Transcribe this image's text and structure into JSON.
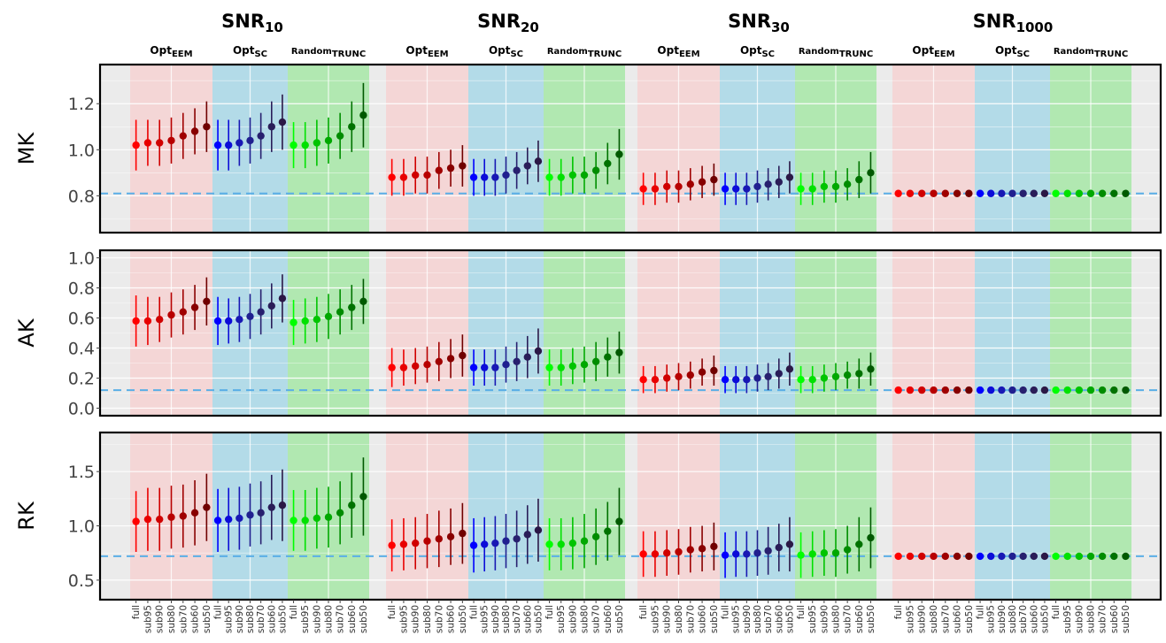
{
  "chart_data": {
    "type": "scatter",
    "description_style": "faceted point-range plot",
    "column_groups": [
      {
        "title_main": "SNR",
        "title_sub": "10"
      },
      {
        "title_main": "SNR",
        "title_sub": "20"
      },
      {
        "title_main": "SNR",
        "title_sub": "30"
      },
      {
        "title_main": "SNR",
        "title_sub": "1000"
      }
    ],
    "methods": [
      {
        "main": "Opt",
        "sub": "EEM",
        "band_color": "#f4d6d6",
        "point_colors": [
          "#ff0000",
          "#e80000",
          "#d00000",
          "#b80000",
          "#a00000",
          "#880000",
          "#700000"
        ]
      },
      {
        "main": "Opt",
        "sub": "SC",
        "band_color": "#b3dbe8",
        "point_colors": [
          "#0000ff",
          "#0c0cd8",
          "#1818b4",
          "#202090",
          "#28206f",
          "#2a1d58",
          "#2b1846"
        ]
      },
      {
        "main": "Random",
        "sub": "TRUNC",
        "band_color": "#b1e8b1",
        "point_colors": [
          "#00ff00",
          "#00e100",
          "#00c400",
          "#00a800",
          "#008c00",
          "#007200",
          "#005900"
        ]
      }
    ],
    "x_categories": [
      "full",
      "sub95",
      "sub90",
      "sub80",
      "sub70",
      "sub60",
      "sub50"
    ],
    "x_categories_trunc": [
      "full",
      "sub95",
      "sub90",
      "sub80",
      "sub70",
      "sub60",
      "sub50"
    ],
    "reference_line_color": "#5aaee6",
    "panels": [
      {
        "label": "MK",
        "ylim": [
          0.64,
          1.37
        ],
        "yticks": [
          0.8,
          1.0,
          1.2
        ],
        "ytick_labels": [
          "0.8",
          "1.0",
          "1.2"
        ],
        "reference": 0.81,
        "series": [
          [
            {
              "mean": [
                1.02,
                1.03,
                1.03,
                1.04,
                1.06,
                1.08,
                1.1
              ],
              "half": [
                0.11,
                0.1,
                0.1,
                0.1,
                0.1,
                0.1,
                0.11
              ]
            },
            {
              "mean": [
                1.02,
                1.02,
                1.03,
                1.04,
                1.06,
                1.1,
                1.12
              ],
              "half": [
                0.11,
                0.11,
                0.1,
                0.1,
                0.1,
                0.11,
                0.12
              ]
            },
            {
              "mean": [
                1.02,
                1.02,
                1.03,
                1.04,
                1.06,
                1.1,
                1.15
              ],
              "half": [
                0.1,
                0.1,
                0.1,
                0.1,
                0.1,
                0.11,
                0.14
              ]
            }
          ],
          [
            {
              "mean": [
                0.88,
                0.88,
                0.89,
                0.89,
                0.91,
                0.92,
                0.93
              ],
              "half": [
                0.08,
                0.08,
                0.08,
                0.08,
                0.08,
                0.08,
                0.09
              ]
            },
            {
              "mean": [
                0.88,
                0.88,
                0.88,
                0.89,
                0.91,
                0.93,
                0.95
              ],
              "half": [
                0.08,
                0.08,
                0.08,
                0.08,
                0.08,
                0.08,
                0.09
              ]
            },
            {
              "mean": [
                0.88,
                0.88,
                0.89,
                0.89,
                0.91,
                0.94,
                0.98
              ],
              "half": [
                0.08,
                0.08,
                0.08,
                0.08,
                0.08,
                0.09,
                0.11
              ]
            }
          ],
          [
            {
              "mean": [
                0.83,
                0.83,
                0.84,
                0.84,
                0.85,
                0.86,
                0.87
              ],
              "half": [
                0.07,
                0.07,
                0.07,
                0.07,
                0.07,
                0.07,
                0.07
              ]
            },
            {
              "mean": [
                0.83,
                0.83,
                0.83,
                0.84,
                0.85,
                0.86,
                0.88
              ],
              "half": [
                0.07,
                0.07,
                0.07,
                0.07,
                0.07,
                0.07,
                0.07
              ]
            },
            {
              "mean": [
                0.83,
                0.83,
                0.84,
                0.84,
                0.85,
                0.87,
                0.9
              ],
              "half": [
                0.07,
                0.07,
                0.07,
                0.07,
                0.07,
                0.08,
                0.09
              ]
            }
          ],
          [
            {
              "mean": [
                0.81,
                0.81,
                0.81,
                0.81,
                0.81,
                0.81,
                0.81
              ],
              "half": [
                0,
                0,
                0,
                0,
                0,
                0,
                0
              ]
            },
            {
              "mean": [
                0.81,
                0.81,
                0.81,
                0.81,
                0.81,
                0.81,
                0.81
              ],
              "half": [
                0,
                0,
                0,
                0,
                0,
                0,
                0
              ]
            },
            {
              "mean": [
                0.81,
                0.81,
                0.81,
                0.81,
                0.81,
                0.81,
                0.81
              ],
              "half": [
                0,
                0,
                0,
                0,
                0,
                0,
                0
              ]
            }
          ]
        ]
      },
      {
        "label": "AK",
        "ylim": [
          -0.05,
          1.05
        ],
        "yticks": [
          0.0,
          0.2,
          0.4,
          0.6,
          0.8,
          1.0
        ],
        "ytick_labels": [
          "0.0",
          "0.2",
          "0.4",
          "0.6",
          "0.8",
          "1.0"
        ],
        "reference": 0.12,
        "series": [
          [
            {
              "mean": [
                0.58,
                0.58,
                0.59,
                0.62,
                0.64,
                0.67,
                0.71
              ],
              "half": [
                0.17,
                0.16,
                0.15,
                0.15,
                0.15,
                0.15,
                0.16
              ]
            },
            {
              "mean": [
                0.58,
                0.58,
                0.59,
                0.61,
                0.64,
                0.68,
                0.73
              ],
              "half": [
                0.16,
                0.15,
                0.15,
                0.15,
                0.15,
                0.15,
                0.16
              ]
            },
            {
              "mean": [
                0.57,
                0.58,
                0.59,
                0.61,
                0.64,
                0.67,
                0.71
              ],
              "half": [
                0.15,
                0.15,
                0.15,
                0.15,
                0.15,
                0.15,
                0.15
              ]
            }
          ],
          [
            {
              "mean": [
                0.27,
                0.27,
                0.28,
                0.29,
                0.31,
                0.33,
                0.35
              ],
              "half": [
                0.13,
                0.12,
                0.12,
                0.12,
                0.13,
                0.13,
                0.14
              ]
            },
            {
              "mean": [
                0.27,
                0.27,
                0.27,
                0.29,
                0.31,
                0.34,
                0.38
              ],
              "half": [
                0.12,
                0.12,
                0.12,
                0.12,
                0.13,
                0.14,
                0.15
              ]
            },
            {
              "mean": [
                0.27,
                0.27,
                0.28,
                0.29,
                0.31,
                0.34,
                0.37
              ],
              "half": [
                0.12,
                0.12,
                0.12,
                0.12,
                0.13,
                0.13,
                0.14
              ]
            }
          ],
          [
            {
              "mean": [
                0.19,
                0.19,
                0.2,
                0.21,
                0.22,
                0.24,
                0.25
              ],
              "half": [
                0.09,
                0.09,
                0.09,
                0.09,
                0.09,
                0.09,
                0.1
              ]
            },
            {
              "mean": [
                0.19,
                0.19,
                0.19,
                0.2,
                0.21,
                0.23,
                0.26
              ],
              "half": [
                0.09,
                0.09,
                0.09,
                0.09,
                0.09,
                0.1,
                0.11
              ]
            },
            {
              "mean": [
                0.19,
                0.19,
                0.2,
                0.21,
                0.22,
                0.23,
                0.26
              ],
              "half": [
                0.09,
                0.09,
                0.09,
                0.09,
                0.09,
                0.1,
                0.11
              ]
            }
          ],
          [
            {
              "mean": [
                0.12,
                0.12,
                0.12,
                0.12,
                0.12,
                0.12,
                0.12
              ],
              "half": [
                0,
                0,
                0,
                0,
                0,
                0,
                0
              ]
            },
            {
              "mean": [
                0.12,
                0.12,
                0.12,
                0.12,
                0.12,
                0.12,
                0.12
              ],
              "half": [
                0,
                0,
                0,
                0,
                0,
                0,
                0
              ]
            },
            {
              "mean": [
                0.12,
                0.12,
                0.12,
                0.12,
                0.12,
                0.12,
                0.12
              ],
              "half": [
                0,
                0,
                0,
                0,
                0,
                0,
                0
              ]
            }
          ]
        ]
      },
      {
        "label": "RK",
        "ylim": [
          0.32,
          1.86
        ],
        "yticks": [
          0.5,
          1.0,
          1.5
        ],
        "ytick_labels": [
          "0.5",
          "1.0",
          "1.5"
        ],
        "reference": 0.72,
        "series": [
          [
            {
              "mean": [
                1.04,
                1.06,
                1.06,
                1.08,
                1.09,
                1.12,
                1.17
              ],
              "half": [
                0.28,
                0.29,
                0.29,
                0.29,
                0.29,
                0.3,
                0.31
              ]
            },
            {
              "mean": [
                1.05,
                1.06,
                1.07,
                1.1,
                1.12,
                1.17,
                1.19
              ],
              "half": [
                0.29,
                0.29,
                0.29,
                0.29,
                0.29,
                0.3,
                0.33
              ]
            },
            {
              "mean": [
                1.05,
                1.05,
                1.07,
                1.08,
                1.12,
                1.19,
                1.27
              ],
              "half": [
                0.28,
                0.28,
                0.28,
                0.28,
                0.29,
                0.3,
                0.36
              ]
            }
          ],
          [
            {
              "mean": [
                0.82,
                0.83,
                0.84,
                0.86,
                0.88,
                0.9,
                0.93
              ],
              "half": [
                0.24,
                0.24,
                0.24,
                0.25,
                0.26,
                0.26,
                0.28
              ]
            },
            {
              "mean": [
                0.82,
                0.83,
                0.84,
                0.86,
                0.88,
                0.92,
                0.96
              ],
              "half": [
                0.25,
                0.25,
                0.25,
                0.25,
                0.26,
                0.27,
                0.29
              ]
            },
            {
              "mean": [
                0.83,
                0.83,
                0.84,
                0.86,
                0.9,
                0.95,
                1.04
              ],
              "half": [
                0.24,
                0.24,
                0.24,
                0.25,
                0.26,
                0.27,
                0.31
              ]
            }
          ],
          [
            {
              "mean": [
                0.74,
                0.74,
                0.75,
                0.76,
                0.78,
                0.79,
                0.81
              ],
              "half": [
                0.21,
                0.21,
                0.21,
                0.21,
                0.21,
                0.21,
                0.22
              ]
            },
            {
              "mean": [
                0.73,
                0.74,
                0.74,
                0.75,
                0.77,
                0.8,
                0.83
              ],
              "half": [
                0.21,
                0.21,
                0.21,
                0.21,
                0.22,
                0.22,
                0.25
              ]
            },
            {
              "mean": [
                0.73,
                0.74,
                0.75,
                0.75,
                0.78,
                0.83,
                0.89
              ],
              "half": [
                0.21,
                0.21,
                0.21,
                0.22,
                0.22,
                0.25,
                0.28
              ]
            }
          ],
          [
            {
              "mean": [
                0.72,
                0.72,
                0.72,
                0.72,
                0.72,
                0.72,
                0.72
              ],
              "half": [
                0,
                0,
                0,
                0,
                0,
                0,
                0
              ]
            },
            {
              "mean": [
                0.72,
                0.72,
                0.72,
                0.72,
                0.72,
                0.72,
                0.72
              ],
              "half": [
                0,
                0,
                0,
                0,
                0,
                0,
                0
              ]
            },
            {
              "mean": [
                0.72,
                0.72,
                0.72,
                0.72,
                0.72,
                0.72,
                0.72
              ],
              "half": [
                0,
                0,
                0,
                0,
                0,
                0,
                0
              ]
            }
          ]
        ]
      }
    ],
    "grid": true,
    "legend": "none"
  }
}
